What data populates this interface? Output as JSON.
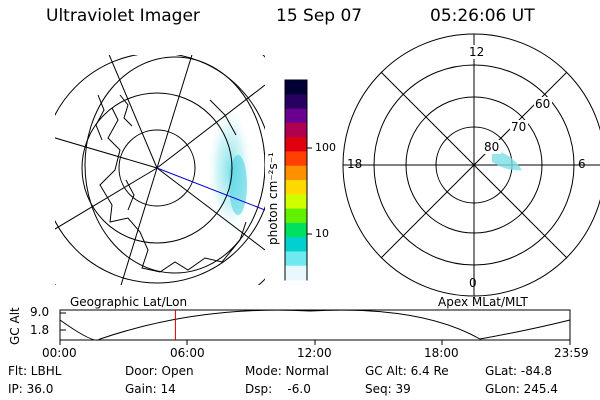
{
  "header": {
    "instrument": "Ultraviolet Imager",
    "date": "15 Sep 07",
    "time": "05:26:06 UT"
  },
  "geo_panel": {
    "label": "Geographic Lat/Lon"
  },
  "colorbar": {
    "unit_label": "photon cm⁻²s⁻¹",
    "tick_100": "100",
    "tick_10": "10",
    "colors": [
      "#000033",
      "#280060",
      "#6a0090",
      "#b00050",
      "#e00010",
      "#ff4000",
      "#ff9000",
      "#ffd800",
      "#d0ff00",
      "#60f000",
      "#00e060",
      "#00d0d0",
      "#70e8f0",
      "#e8f8ff"
    ]
  },
  "polar_panel": {
    "label": "Apex MLat/MLT",
    "mlt_top": "12",
    "mlt_right": "6",
    "mlt_bottom": "0",
    "mlt_left": "18",
    "lat_60": "60",
    "lat_70": "70",
    "lat_80": "80"
  },
  "altitude_plot": {
    "ylabel": "GC Alt",
    "ytick_top": "9.0",
    "ytick_bottom": "1.8",
    "xticks": [
      "00:00",
      "06:00",
      "12:00",
      "18:00",
      "23:59"
    ],
    "current_time_hours": 5.43,
    "line_color": "#cc0000"
  },
  "info": {
    "flt": "Flt: LBHL",
    "ip": "IP: 36.0",
    "door": "Door: Open",
    "gain": "Gain: 14",
    "mode": "Mode: Normal",
    "dsp": "Dsp:    -6.0",
    "gc_alt": "GC Alt: 6.4 Re",
    "seq": "Seq: 39",
    "glat": "GLat: -84.8",
    "glon": "GLon: 245.4"
  }
}
